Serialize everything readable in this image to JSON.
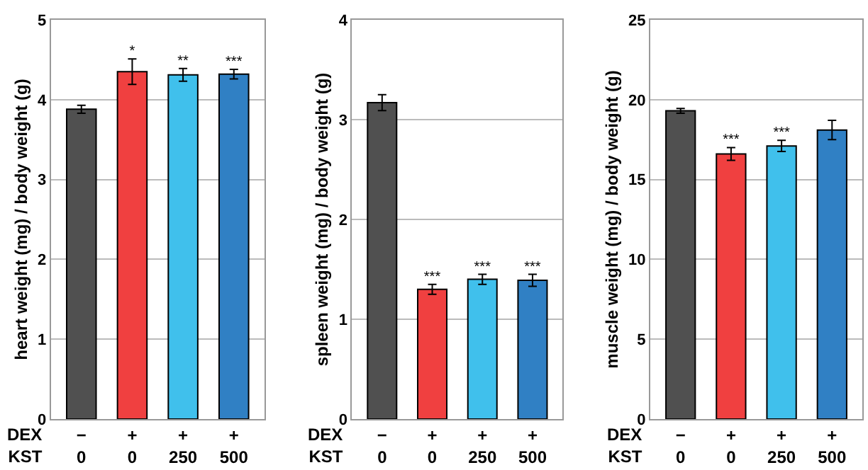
{
  "chart_data": [
    {
      "type": "bar",
      "categories": [
        "−\n0",
        "+\n0",
        "+\n250",
        "+\n500"
      ],
      "ylabel": "heart weight (mg) / body weight (g)",
      "annotations": [
        "DEX\nKST"
      ],
      "colors": [
        "#505050",
        "#f04040",
        "#40c0ec",
        "#3080c4"
      ],
      "values": [
        3.88,
        4.35,
        4.31,
        4.32
      ],
      "errors": [
        0.05,
        0.16,
        0.08,
        0.06
      ],
      "value_labels": [
        null,
        "*",
        "**",
        "***"
      ],
      "ylim": [
        0,
        5
      ],
      "yticks": [
        0,
        1,
        2,
        3,
        4,
        5
      ],
      "grid": "y"
    },
    {
      "type": "bar",
      "categories": [
        "−\n0",
        "+\n0",
        "+\n250",
        "+\n500"
      ],
      "ylabel": "spleen weight (mg) / body weight (g)",
      "annotations": [
        "DEX\nKST"
      ],
      "colors": [
        "#505050",
        "#f04040",
        "#40c0ec",
        "#3080c4"
      ],
      "values": [
        3.17,
        1.3,
        1.4,
        1.39
      ],
      "errors": [
        0.08,
        0.05,
        0.05,
        0.06
      ],
      "value_labels": [
        null,
        "***",
        "***",
        "***"
      ],
      "ylim": [
        0,
        4
      ],
      "yticks": [
        0,
        1,
        2,
        3,
        4
      ],
      "grid": "y"
    },
    {
      "type": "bar",
      "categories": [
        "−\n0",
        "+\n0",
        "+\n250",
        "+\n500"
      ],
      "ylabel": "muscle weight (mg) / body weight (g)",
      "annotations": [
        "DEX\nKST"
      ],
      "colors": [
        "#505050",
        "#f04040",
        "#40c0ec",
        "#3080c4"
      ],
      "values": [
        19.3,
        16.6,
        17.1,
        18.1
      ],
      "errors": [
        0.15,
        0.4,
        0.35,
        0.6
      ],
      "value_labels": [
        null,
        "***",
        "***",
        null
      ],
      "ylim": [
        0,
        25
      ],
      "yticks": [
        0,
        5,
        10,
        15,
        20,
        25
      ],
      "grid": "y"
    }
  ]
}
